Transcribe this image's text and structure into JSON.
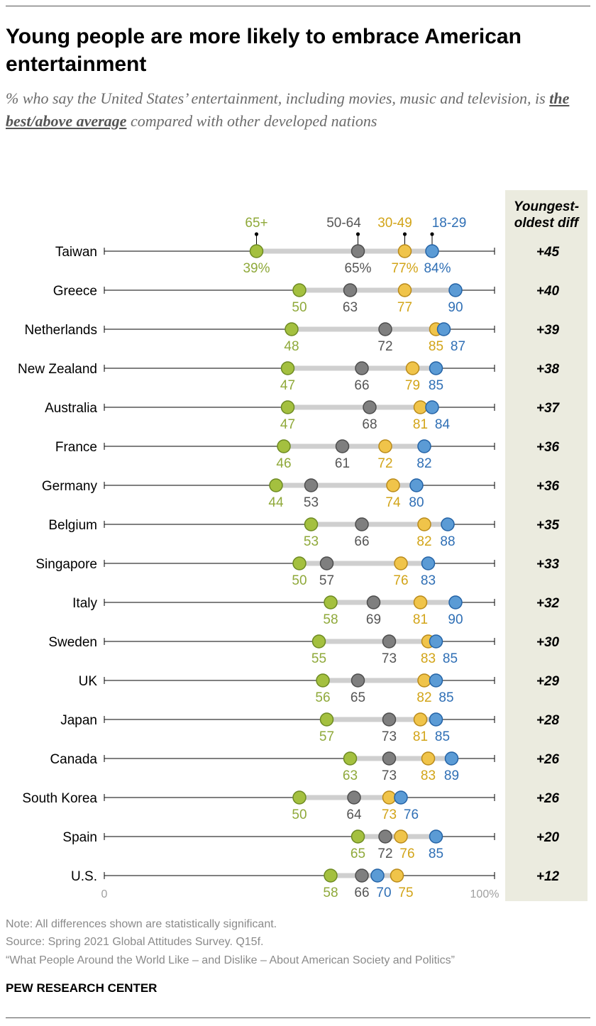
{
  "title": "Young people are more likely to embrace American entertainment",
  "subtitle": {
    "before": "% who say the United States’ entertainment, including movies, music and television, is ",
    "emphasis": "the best/above average",
    "after": " compared with other developed nations"
  },
  "chart_data": {
    "type": "dot-plot",
    "xlim": [
      0,
      100
    ],
    "x_tick_labels": [
      "0",
      "100%"
    ],
    "diff_header": "Youngest-oldest diff",
    "series": [
      {
        "name": "65+",
        "color": "#a4c03f",
        "edge": "#6d8a22",
        "text_color": "#8fa93a"
      },
      {
        "name": "50-64",
        "color": "#7f7f7f",
        "edge": "#4d4d4d",
        "text_color": "#555555"
      },
      {
        "name": "30-49",
        "color": "#f0c44a",
        "edge": "#b98a1a",
        "text_color": "#d2a418"
      },
      {
        "name": "18-29",
        "color": "#5b9bd5",
        "edge": "#2463a6",
        "text_color": "#2f6fb5"
      }
    ],
    "rows": [
      {
        "country": "Taiwan",
        "values": [
          39,
          65,
          77,
          84
        ],
        "labels": [
          "39%",
          "65%",
          "77%",
          "84%"
        ],
        "diff": "+45"
      },
      {
        "country": "Greece",
        "values": [
          50,
          63,
          77,
          90
        ],
        "labels": [
          "50",
          "63",
          "77",
          "90"
        ],
        "diff": "+40"
      },
      {
        "country": "Netherlands",
        "values": [
          48,
          72,
          85,
          87
        ],
        "labels": [
          "48",
          "72",
          "85",
          "87"
        ],
        "diff": "+39"
      },
      {
        "country": "New Zealand",
        "values": [
          47,
          66,
          79,
          85
        ],
        "labels": [
          "47",
          "66",
          "79",
          "85"
        ],
        "diff": "+38"
      },
      {
        "country": "Australia",
        "values": [
          47,
          68,
          81,
          84
        ],
        "labels": [
          "47",
          "68",
          "81",
          "84"
        ],
        "diff": "+37"
      },
      {
        "country": "France",
        "values": [
          46,
          61,
          72,
          82
        ],
        "labels": [
          "46",
          "61",
          "72",
          "82"
        ],
        "diff": "+36"
      },
      {
        "country": "Germany",
        "values": [
          44,
          53,
          74,
          80
        ],
        "labels": [
          "44",
          "53",
          "74",
          "80"
        ],
        "diff": "+36"
      },
      {
        "country": "Belgium",
        "values": [
          53,
          66,
          82,
          88
        ],
        "labels": [
          "53",
          "66",
          "82",
          "88"
        ],
        "diff": "+35"
      },
      {
        "country": "Singapore",
        "values": [
          50,
          57,
          76,
          83
        ],
        "labels": [
          "50",
          "57",
          "76",
          "83"
        ],
        "diff": "+33"
      },
      {
        "country": "Italy",
        "values": [
          58,
          69,
          81,
          90
        ],
        "labels": [
          "58",
          "69",
          "81",
          "90"
        ],
        "diff": "+32"
      },
      {
        "country": "Sweden",
        "values": [
          55,
          73,
          83,
          85
        ],
        "labels": [
          "55",
          "73",
          "83",
          "85"
        ],
        "diff": "+30"
      },
      {
        "country": "UK",
        "values": [
          56,
          65,
          82,
          85
        ],
        "labels": [
          "56",
          "65",
          "82",
          "85"
        ],
        "diff": "+29"
      },
      {
        "country": "Japan",
        "values": [
          57,
          73,
          81,
          85
        ],
        "labels": [
          "57",
          "73",
          "81",
          "85"
        ],
        "diff": "+28"
      },
      {
        "country": "Canada",
        "values": [
          63,
          73,
          83,
          89
        ],
        "labels": [
          "63",
          "73",
          "83",
          "89"
        ],
        "diff": "+26"
      },
      {
        "country": "South Korea",
        "values": [
          50,
          64,
          73,
          76
        ],
        "labels": [
          "50",
          "64",
          "73",
          "76"
        ],
        "diff": "+26"
      },
      {
        "country": "Spain",
        "values": [
          65,
          72,
          76,
          85
        ],
        "labels": [
          "65",
          "72",
          "76",
          "85"
        ],
        "diff": "+20"
      },
      {
        "country": "U.S.",
        "values": [
          58,
          66,
          75,
          70
        ],
        "labels": [
          "58",
          "66",
          "75",
          "70"
        ],
        "diff": "+12"
      }
    ]
  },
  "footer": {
    "note": "Note: All differences shown are statistically significant.",
    "source": "Source: Spring 2021 Global Attitudes Survey. Q15f.",
    "report": "“What People Around the World Like – and Dislike – About American Society and Politics”",
    "brand": "PEW RESEARCH CENTER"
  }
}
